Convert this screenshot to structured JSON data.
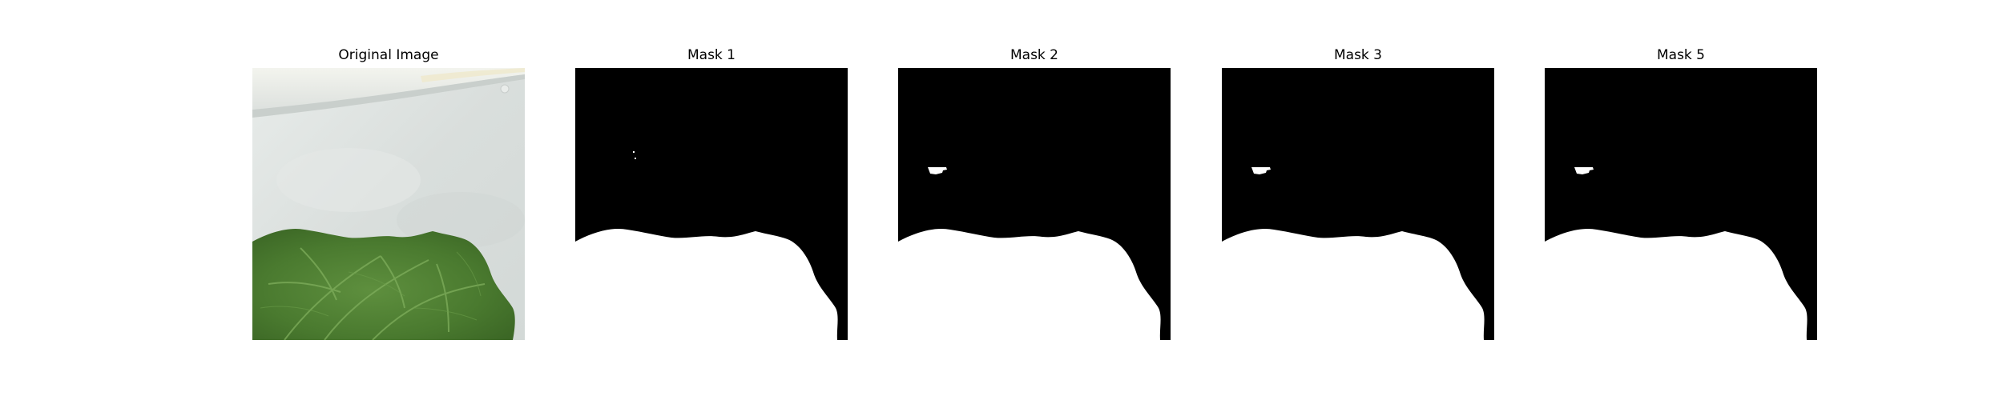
{
  "panels": [
    {
      "title": "Original Image",
      "kind": "photo"
    },
    {
      "title": "Mask 1",
      "kind": "mask",
      "blob": false
    },
    {
      "title": "Mask 2",
      "kind": "mask",
      "blob": true
    },
    {
      "title": "Mask 3",
      "kind": "mask",
      "blob": true
    },
    {
      "title": "Mask 5",
      "kind": "mask",
      "blob": true
    }
  ],
  "colors": {
    "mask_background": "#000000",
    "mask_foreground": "#ffffff",
    "leaf": "#4f7d35",
    "backdrop": "#dfe3e2"
  }
}
